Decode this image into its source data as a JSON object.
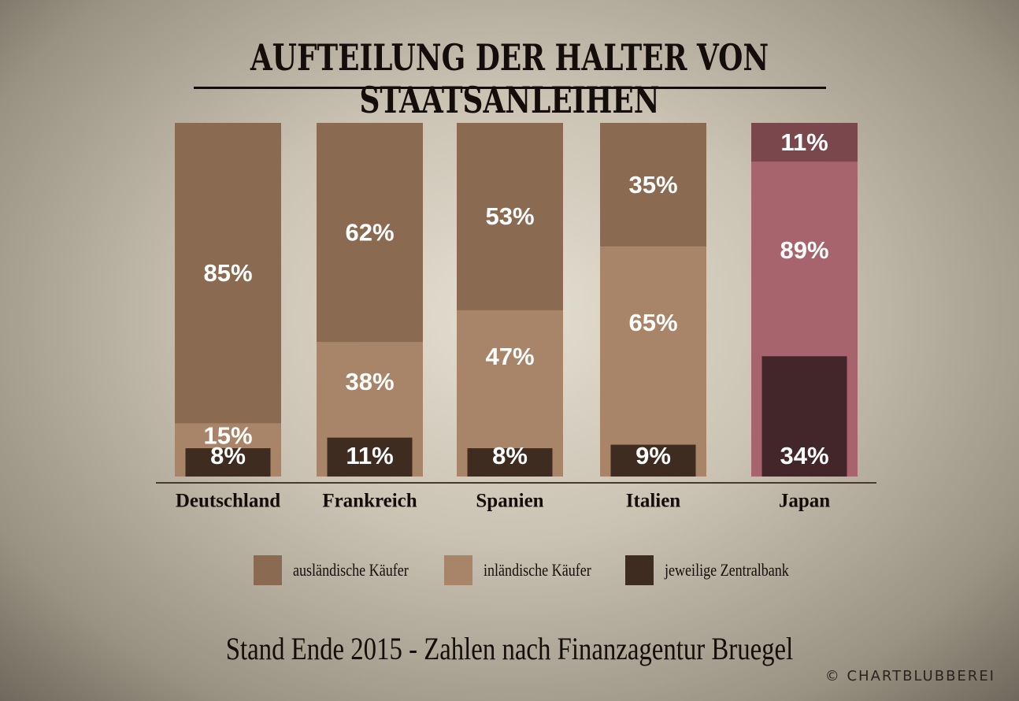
{
  "title": "AUFTEILUNG DER HALTER VON STAATSANLEIHEN",
  "footnote": "Stand Ende 2015 - Zahlen nach Finanzagentur Bruegel",
  "credit": "© CHARTBLUBBEREI",
  "colors": {
    "auslaendisch": "#8a6a50",
    "inlaendisch": "#a88468",
    "zentralbank": "#3e2c20",
    "japan_auslaendisch": "#7a484c",
    "japan_inlaendisch": "#a8646c",
    "japan_zentralbank": "#42262a",
    "axis": "#4a3a2e"
  },
  "legend": [
    {
      "label": "ausländische Käufer",
      "color": "#8a6a50"
    },
    {
      "label": "inländische Käufer",
      "color": "#a88468"
    },
    {
      "label": "jeweilige Zentralbank",
      "color": "#3e2c20"
    }
  ],
  "chart_data": {
    "type": "bar",
    "categories": [
      "Deutschland",
      "Frankreich",
      "Spanien",
      "Italien",
      "Japan"
    ],
    "series": [
      {
        "name": "ausländische Käufer",
        "values": [
          85,
          62,
          53,
          35,
          11
        ]
      },
      {
        "name": "inländische Käufer",
        "values": [
          15,
          38,
          47,
          65,
          89
        ]
      },
      {
        "name": "jeweilige Zentralbank",
        "values": [
          8,
          11,
          8,
          9,
          34
        ]
      }
    ],
    "labels": {
      "auslaendisch": [
        "85%",
        "62%",
        "53%",
        "35%",
        "11%"
      ],
      "inlaendisch": [
        "15%",
        "38%",
        "47%",
        "65%",
        "89%"
      ],
      "zentralbank": [
        "8%",
        "11%",
        "8%",
        "9%",
        "34%"
      ]
    },
    "title": "AUFTEILUNG DER HALTER VON STAATSANLEIHEN",
    "ylim": [
      0,
      100
    ],
    "grid": false,
    "legend_position": "bottom"
  }
}
